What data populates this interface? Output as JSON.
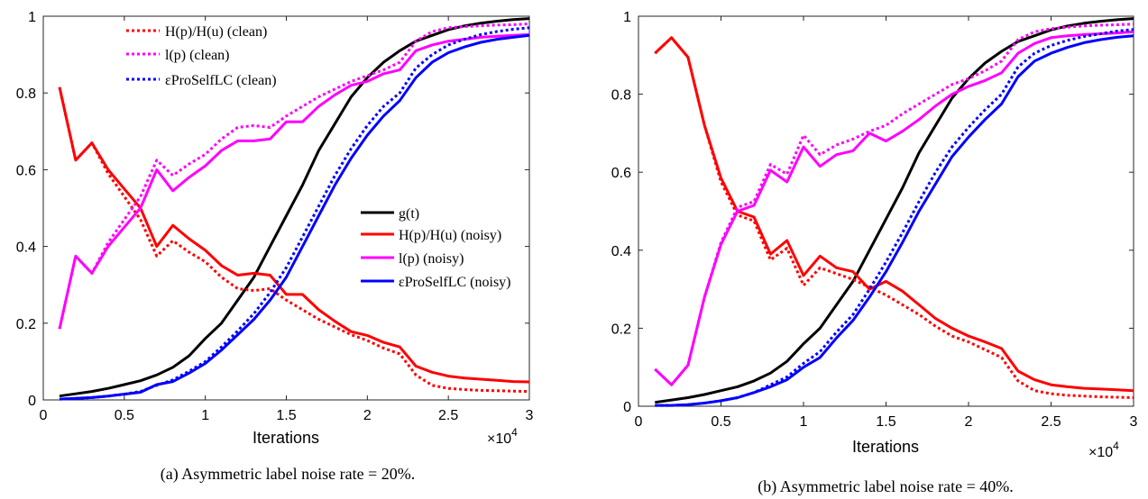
{
  "chart_data": [
    {
      "type": "line",
      "caption": "(a) Asymmetric label noise rate = 20%.",
      "xlabel": "Iterations",
      "x_multiplier": "×10",
      "x_multiplier_exp": "4",
      "xlim": [
        0,
        3
      ],
      "ylim": [
        0,
        1
      ],
      "xticks": [
        0,
        0.5,
        1,
        1.5,
        2,
        2.5,
        3
      ],
      "xtick_labels": [
        "0",
        "0.5",
        "1",
        "1.5",
        "2",
        "2.5",
        "3"
      ],
      "yticks": [
        0,
        0.2,
        0.4,
        0.6,
        0.8,
        1
      ],
      "ytick_labels": [
        "0",
        "0.2",
        "0.4",
        "0.6",
        "0.8",
        "1"
      ],
      "legends": [
        {
          "position": "top-center",
          "entries": [
            {
              "label": "H(p)/H(u) (clean)",
              "color": "#ff0000",
              "dash": "dotted"
            },
            {
              "label": "l(p) (clean)",
              "color": "#ff00ff",
              "dash": "dotted"
            },
            {
              "label": "εProSelfLC (clean)",
              "color": "#0000ff",
              "dash": "dotted"
            }
          ]
        },
        {
          "position": "center-right",
          "entries": [
            {
              "label": "g(t)",
              "color": "#000000",
              "dash": "solid"
            },
            {
              "label": "H(p)/H(u) (noisy)",
              "color": "#ff0000",
              "dash": "solid"
            },
            {
              "label": "l(p) (noisy)",
              "color": "#ff00ff",
              "dash": "solid"
            },
            {
              "label": "εProSelfLC (noisy)",
              "color": "#0000ff",
              "dash": "solid"
            }
          ]
        }
      ],
      "x": [
        0.1,
        0.2,
        0.3,
        0.4,
        0.5,
        0.6,
        0.7,
        0.8,
        0.9,
        1.0,
        1.1,
        1.2,
        1.3,
        1.4,
        1.5,
        1.6,
        1.7,
        1.8,
        1.9,
        2.0,
        2.1,
        2.2,
        2.3,
        2.4,
        2.5,
        2.6,
        2.7,
        2.8,
        2.9,
        3.0
      ],
      "series": [
        {
          "name": "g(t)",
          "color": "#000000",
          "dash": "solid",
          "values": [
            0.01,
            0.016,
            0.022,
            0.03,
            0.04,
            0.05,
            0.065,
            0.085,
            0.115,
            0.16,
            0.2,
            0.26,
            0.32,
            0.4,
            0.48,
            0.56,
            0.65,
            0.72,
            0.79,
            0.84,
            0.88,
            0.91,
            0.935,
            0.95,
            0.965,
            0.975,
            0.982,
            0.987,
            0.991,
            0.994
          ]
        },
        {
          "name": "H(p)/H(u) (noisy)",
          "color": "#ff0000",
          "dash": "solid",
          "values": [
            0.815,
            0.625,
            0.67,
            0.6,
            0.55,
            0.5,
            0.4,
            0.455,
            0.42,
            0.39,
            0.35,
            0.325,
            0.33,
            0.325,
            0.275,
            0.275,
            0.235,
            0.205,
            0.178,
            0.168,
            0.15,
            0.138,
            0.088,
            0.072,
            0.062,
            0.057,
            0.054,
            0.051,
            0.048,
            0.047
          ]
        },
        {
          "name": "H(p)/H(u) (clean)",
          "color": "#ff0000",
          "dash": "dotted",
          "values": [
            0.815,
            0.625,
            0.67,
            0.59,
            0.53,
            0.47,
            0.375,
            0.415,
            0.385,
            0.36,
            0.32,
            0.29,
            0.285,
            0.29,
            0.26,
            0.235,
            0.21,
            0.19,
            0.17,
            0.155,
            0.135,
            0.12,
            0.065,
            0.038,
            0.03,
            0.027,
            0.025,
            0.024,
            0.023,
            0.022
          ]
        },
        {
          "name": "l(p) (noisy)",
          "color": "#ff00ff",
          "dash": "solid",
          "values": [
            0.185,
            0.375,
            0.33,
            0.4,
            0.45,
            0.5,
            0.6,
            0.545,
            0.58,
            0.61,
            0.65,
            0.675,
            0.675,
            0.68,
            0.725,
            0.725,
            0.765,
            0.795,
            0.82,
            0.83,
            0.85,
            0.86,
            0.91,
            0.925,
            0.935,
            0.94,
            0.945,
            0.948,
            0.95,
            0.952
          ]
        },
        {
          "name": "l(p) (clean)",
          "color": "#ff00ff",
          "dash": "dotted",
          "values": [
            0.185,
            0.375,
            0.33,
            0.41,
            0.47,
            0.53,
            0.625,
            0.585,
            0.615,
            0.64,
            0.68,
            0.71,
            0.715,
            0.71,
            0.74,
            0.765,
            0.79,
            0.81,
            0.83,
            0.845,
            0.86,
            0.88,
            0.935,
            0.96,
            0.97,
            0.973,
            0.975,
            0.977,
            0.978,
            0.98
          ]
        },
        {
          "name": "εProSelfLC (noisy)",
          "color": "#0000ff",
          "dash": "solid",
          "values": [
            0.002,
            0.004,
            0.006,
            0.01,
            0.015,
            0.02,
            0.04,
            0.048,
            0.07,
            0.095,
            0.13,
            0.17,
            0.21,
            0.26,
            0.32,
            0.4,
            0.48,
            0.56,
            0.63,
            0.69,
            0.74,
            0.78,
            0.84,
            0.88,
            0.905,
            0.92,
            0.932,
            0.94,
            0.945,
            0.95
          ]
        },
        {
          "name": "εProSelfLC (clean)",
          "color": "#0000ff",
          "dash": "dotted",
          "values": [
            0.002,
            0.004,
            0.006,
            0.01,
            0.015,
            0.022,
            0.038,
            0.052,
            0.075,
            0.1,
            0.138,
            0.18,
            0.225,
            0.28,
            0.345,
            0.425,
            0.505,
            0.585,
            0.655,
            0.715,
            0.765,
            0.8,
            0.865,
            0.9,
            0.925,
            0.94,
            0.952,
            0.96,
            0.966,
            0.97
          ]
        }
      ]
    },
    {
      "type": "line",
      "caption": "(b) Asymmetric label noise rate = 40%.",
      "xlabel": "Iterations",
      "x_multiplier": "×10",
      "x_multiplier_exp": "4",
      "xlim": [
        0,
        3
      ],
      "ylim": [
        0,
        1
      ],
      "xticks": [
        0,
        0.5,
        1,
        1.5,
        2,
        2.5,
        3
      ],
      "xtick_labels": [
        "0",
        "0.5",
        "1",
        "1.5",
        "2",
        "2.5",
        "3"
      ],
      "yticks": [
        0,
        0.2,
        0.4,
        0.6,
        0.8,
        1
      ],
      "ytick_labels": [
        "0",
        "0.2",
        "0.4",
        "0.6",
        "0.8",
        "1"
      ],
      "legends": [],
      "x": [
        0.1,
        0.2,
        0.3,
        0.4,
        0.5,
        0.6,
        0.7,
        0.8,
        0.9,
        1.0,
        1.1,
        1.2,
        1.3,
        1.4,
        1.5,
        1.6,
        1.7,
        1.8,
        1.9,
        2.0,
        2.1,
        2.2,
        2.3,
        2.4,
        2.5,
        2.6,
        2.7,
        2.8,
        2.9,
        3.0
      ],
      "series": [
        {
          "name": "g(t)",
          "color": "#000000",
          "dash": "solid",
          "values": [
            0.01,
            0.016,
            0.022,
            0.03,
            0.04,
            0.05,
            0.065,
            0.085,
            0.115,
            0.16,
            0.2,
            0.26,
            0.32,
            0.4,
            0.48,
            0.56,
            0.65,
            0.72,
            0.79,
            0.84,
            0.88,
            0.91,
            0.935,
            0.95,
            0.965,
            0.975,
            0.982,
            0.987,
            0.991,
            0.994
          ]
        },
        {
          "name": "H(p)/H(u) (noisy)",
          "color": "#ff0000",
          "dash": "solid",
          "values": [
            0.905,
            0.945,
            0.895,
            0.72,
            0.585,
            0.5,
            0.485,
            0.39,
            0.425,
            0.335,
            0.385,
            0.355,
            0.345,
            0.3,
            0.32,
            0.295,
            0.26,
            0.225,
            0.2,
            0.18,
            0.165,
            0.148,
            0.09,
            0.068,
            0.055,
            0.05,
            0.046,
            0.044,
            0.042,
            0.04
          ]
        },
        {
          "name": "H(p)/H(u) (clean)",
          "color": "#ff0000",
          "dash": "dotted",
          "values": [
            0.905,
            0.945,
            0.895,
            0.72,
            0.575,
            0.49,
            0.475,
            0.375,
            0.405,
            0.31,
            0.355,
            0.34,
            0.325,
            0.305,
            0.285,
            0.26,
            0.235,
            0.205,
            0.18,
            0.165,
            0.145,
            0.125,
            0.065,
            0.04,
            0.032,
            0.028,
            0.026,
            0.024,
            0.023,
            0.022
          ]
        },
        {
          "name": "l(p) (noisy)",
          "color": "#ff00ff",
          "dash": "solid",
          "values": [
            0.095,
            0.055,
            0.105,
            0.28,
            0.415,
            0.5,
            0.515,
            0.605,
            0.575,
            0.665,
            0.615,
            0.645,
            0.655,
            0.7,
            0.68,
            0.705,
            0.735,
            0.77,
            0.8,
            0.82,
            0.835,
            0.855,
            0.905,
            0.93,
            0.945,
            0.95,
            0.953,
            0.955,
            0.957,
            0.96
          ]
        },
        {
          "name": "l(p) (clean)",
          "color": "#ff00ff",
          "dash": "dotted",
          "values": [
            0.095,
            0.055,
            0.105,
            0.28,
            0.42,
            0.51,
            0.525,
            0.62,
            0.595,
            0.695,
            0.645,
            0.67,
            0.685,
            0.705,
            0.72,
            0.75,
            0.775,
            0.8,
            0.825,
            0.84,
            0.86,
            0.885,
            0.94,
            0.96,
            0.968,
            0.972,
            0.975,
            0.977,
            0.978,
            0.98
          ]
        },
        {
          "name": "εProSelfLC (noisy)",
          "color": "#0000ff",
          "dash": "solid",
          "values": [
            0.002,
            0.002,
            0.004,
            0.008,
            0.014,
            0.022,
            0.035,
            0.05,
            0.068,
            0.1,
            0.125,
            0.175,
            0.22,
            0.28,
            0.345,
            0.42,
            0.5,
            0.57,
            0.64,
            0.69,
            0.735,
            0.775,
            0.845,
            0.885,
            0.905,
            0.92,
            0.932,
            0.94,
            0.946,
            0.95
          ]
        },
        {
          "name": "εProSelfLC (clean)",
          "color": "#0000ff",
          "dash": "dotted",
          "values": [
            0.002,
            0.002,
            0.004,
            0.008,
            0.014,
            0.022,
            0.035,
            0.055,
            0.075,
            0.11,
            0.14,
            0.19,
            0.235,
            0.3,
            0.37,
            0.445,
            0.525,
            0.6,
            0.665,
            0.715,
            0.76,
            0.8,
            0.87,
            0.905,
            0.925,
            0.938,
            0.948,
            0.955,
            0.962,
            0.966
          ]
        }
      ]
    }
  ]
}
